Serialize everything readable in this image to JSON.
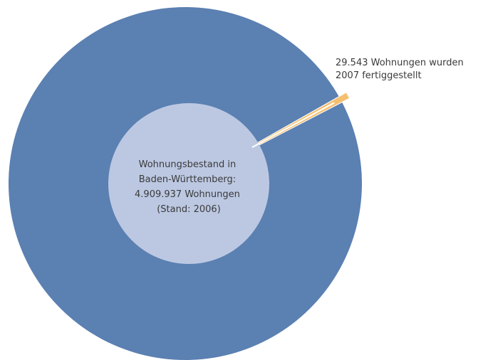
{
  "chart_data": {
    "type": "pie",
    "slices": [
      {
        "label": "Wohnungsbestand in Baden-Württemberg: 4.909.937 Wohnungen (Stand: 2006)",
        "value": 4909937,
        "color": "#5b80b2"
      },
      {
        "label": "29.543 Wohnungen wurden 2007 fertiggestellt",
        "value": 29543,
        "color": "#f4c070",
        "exploded": true
      }
    ],
    "center_label": {
      "lines": [
        "Wohnungsbestand in",
        "Baden-Württemberg:",
        "4.909.937 Wohnungen",
        "(Stand: 2006)"
      ],
      "color": "#bcc8e2"
    },
    "callout": {
      "lines": [
        "29.543 Wohnungen wurden",
        "2007 fertiggestellt"
      ]
    }
  }
}
